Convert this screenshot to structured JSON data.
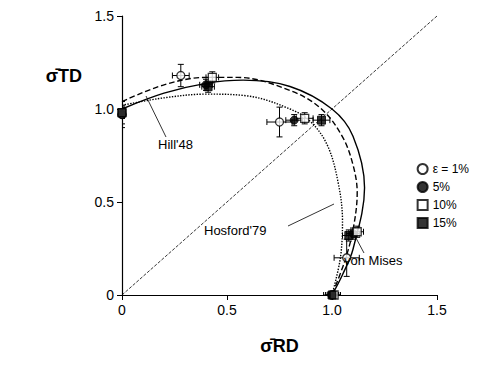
{
  "chart_data": {
    "type": "scatter",
    "xlabel": "σ̄RD",
    "ylabel": "σ̄TD",
    "xlim": [
      0,
      1.5
    ],
    "ylim": [
      0,
      1.5
    ],
    "xticks": [
      0,
      0.5,
      {
        "value": 1,
        "label": "1.0"
      },
      1.5
    ],
    "yticks": [
      0,
      0.5,
      {
        "value": 1,
        "label": "1.0"
      },
      1.5
    ],
    "grid": false,
    "legend": "right",
    "series": [
      {
        "name": "ε = 1%",
        "type": "scatter",
        "marker": "circle-open",
        "color": "#000000",
        "x": [
          1.0,
          1.07,
          0.75,
          0.28,
          0.0
        ],
        "y": [
          0.0,
          0.2,
          0.93,
          1.18,
          0.97
        ],
        "x_error": [
          0.04,
          0.06,
          0.06,
          0.04,
          0.0
        ],
        "y_error": [
          0.0,
          0.1,
          0.08,
          0.06,
          0.07
        ]
      },
      {
        "name": "5%",
        "type": "scatter",
        "marker": "circle",
        "color": "#000000",
        "x": [
          1.0,
          1.1,
          0.82,
          0.4,
          0.0
        ],
        "y": [
          0.0,
          0.33,
          0.94,
          1.13,
          0.97
        ],
        "x_error": [
          0.03,
          0.03,
          0.04,
          0.03,
          0.0
        ],
        "y_error": [
          0.0,
          0.03,
          0.03,
          0.03,
          0.05
        ]
      },
      {
        "name": "10%",
        "type": "scatter",
        "marker": "square-open",
        "color": "#000000",
        "x": [
          1.01,
          1.12,
          0.87,
          0.43,
          0.0
        ],
        "y": [
          0.0,
          0.34,
          0.95,
          1.17,
          0.98
        ],
        "x_error": [
          0.03,
          0.03,
          0.04,
          0.03,
          0.0
        ],
        "y_error": [
          0.0,
          0.03,
          0.03,
          0.03,
          0.03
        ]
      },
      {
        "name": "15%",
        "type": "scatter",
        "marker": "square",
        "color": "#000000",
        "x": [
          1.0,
          1.08,
          0.95,
          0.41,
          0.0
        ],
        "y": [
          0.0,
          0.32,
          0.94,
          1.12,
          0.98
        ],
        "x_error": [
          0.03,
          0.03,
          0.04,
          0.03,
          0.0
        ],
        "y_error": [
          0.0,
          0.03,
          0.03,
          0.03,
          0.03
        ]
      },
      {
        "name": "Hill'48",
        "type": "line",
        "line_style": "dashed",
        "color": "#000000",
        "x": [
          0.0,
          0.2,
          0.4,
          0.55,
          0.8,
          0.95,
          1.05,
          1.1,
          1.12,
          1.1,
          1.06,
          1.0
        ],
        "y": [
          1.04,
          1.13,
          1.17,
          1.17,
          1.1,
          1.0,
          0.85,
          0.7,
          0.55,
          0.35,
          0.18,
          0.0
        ]
      },
      {
        "name": "Hosford'79",
        "type": "line",
        "line_style": "dotted",
        "color": "#000000",
        "x": [
          0.0,
          0.2,
          0.4,
          0.6,
          0.8,
          0.9,
          0.98,
          1.03,
          1.05,
          1.04,
          1.0
        ],
        "y": [
          1.02,
          1.06,
          1.08,
          1.07,
          1.0,
          0.93,
          0.8,
          0.6,
          0.4,
          0.2,
          0.0
        ]
      },
      {
        "name": "von Mises",
        "type": "line",
        "line_style": "solid",
        "color": "#000000",
        "x": [
          0.0,
          0.2,
          0.4,
          0.577,
          0.8,
          1.0,
          1.1,
          1.155,
          1.1,
          1.05,
          1.0
        ],
        "y": [
          1.0,
          1.085,
          1.138,
          1.155,
          1.121,
          1.0,
          0.854,
          0.577,
          0.246,
          0.109,
          0.0
        ]
      },
      {
        "type": "line",
        "line_style": "dashed",
        "color": "#000000",
        "x": [
          0,
          1.5
        ],
        "y": [
          0,
          1.5
        ]
      }
    ]
  }
}
